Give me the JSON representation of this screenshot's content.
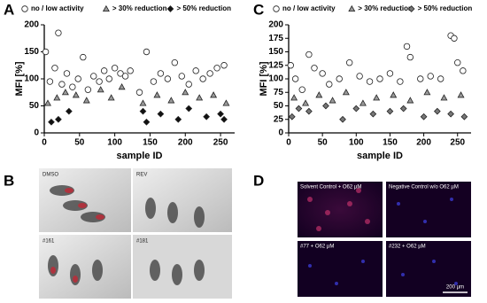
{
  "panel_labels": [
    "A",
    "B",
    "C",
    "D"
  ],
  "chart_data": [
    {
      "type": "scatter",
      "xlabel": "sample ID",
      "ylabel": "MFI [%]",
      "xlim": [
        0,
        270
      ],
      "xticks": [
        0,
        50,
        100,
        150,
        200,
        250
      ],
      "ylim": [
        0,
        200
      ],
      "yticks": [
        0,
        50,
        100,
        150,
        200
      ],
      "series": [
        {
          "name": "no / low activity",
          "marker": "circle",
          "color": "#ffffff",
          "x": [
            2,
            8,
            15,
            20,
            25,
            32,
            40,
            48,
            55,
            62,
            70,
            78,
            85,
            92,
            100,
            108,
            115,
            122,
            135,
            145,
            155,
            165,
            175,
            185,
            195,
            205,
            215,
            225,
            235,
            245,
            255
          ],
          "values": [
            150,
            95,
            120,
            185,
            90,
            110,
            85,
            100,
            140,
            80,
            105,
            95,
            115,
            100,
            120,
            110,
            105,
            115,
            75,
            150,
            95,
            110,
            100,
            130,
            105,
            90,
            115,
            100,
            110,
            120,
            125
          ]
        },
        {
          "name": "> 30% reduction",
          "marker": "triangle",
          "color": "#9a9a9a",
          "x": [
            5,
            18,
            30,
            45,
            60,
            80,
            95,
            110,
            140,
            160,
            180,
            200,
            220,
            240,
            258
          ],
          "values": [
            55,
            65,
            75,
            70,
            60,
            80,
            65,
            85,
            55,
            70,
            60,
            75,
            65,
            70,
            55
          ]
        },
        {
          "name": "> 50% reduction",
          "marker": "diamond",
          "color": "#111111",
          "x": [
            10,
            20,
            35,
            140,
            145,
            165,
            190,
            205,
            230,
            250,
            255
          ],
          "values": [
            20,
            25,
            40,
            40,
            20,
            35,
            25,
            45,
            30,
            35,
            25
          ]
        }
      ]
    },
    {
      "type": "scatter",
      "xlabel": "sample ID",
      "ylabel": "MFI [%]",
      "xlim": [
        0,
        270
      ],
      "xticks": [
        0,
        50,
        100,
        150,
        200,
        250
      ],
      "ylim": [
        0,
        200
      ],
      "yticks": [
        0,
        25,
        50,
        75,
        100,
        125,
        150,
        175,
        200
      ],
      "series": [
        {
          "name": "no / low activity",
          "marker": "circle",
          "color": "#ffffff",
          "x": [
            3,
            10,
            20,
            30,
            38,
            50,
            60,
            75,
            90,
            105,
            120,
            135,
            150,
            165,
            175,
            180,
            195,
            210,
            225,
            240,
            245,
            250,
            258
          ],
          "values": [
            125,
            100,
            80,
            145,
            120,
            110,
            90,
            100,
            130,
            105,
            95,
            100,
            110,
            95,
            160,
            140,
            100,
            105,
            100,
            180,
            175,
            130,
            115
          ]
        },
        {
          "name": "> 30% reduction",
          "marker": "triangle",
          "color": "#9a9a9a",
          "x": [
            8,
            25,
            45,
            65,
            85,
            110,
            130,
            155,
            180,
            205,
            230,
            255
          ],
          "values": [
            65,
            55,
            70,
            60,
            75,
            55,
            65,
            70,
            60,
            75,
            65,
            70
          ]
        },
        {
          "name": "> 50% reduction",
          "marker": "diamond",
          "color": "#777777",
          "x": [
            5,
            15,
            30,
            55,
            80,
            100,
            125,
            150,
            170,
            200,
            220,
            240,
            260
          ],
          "values": [
            30,
            45,
            40,
            50,
            25,
            45,
            35,
            40,
            45,
            30,
            40,
            35,
            30
          ]
        }
      ]
    }
  ],
  "images": {
    "B": [
      "DMSO",
      "REV",
      "#161",
      "#181"
    ],
    "D": [
      "Solvent Control + O62 µM",
      "Negative Control w/o O62 µM",
      "#77 + O62 µM",
      "#232 + O62 µM"
    ],
    "scale_bar": "200 µm"
  }
}
